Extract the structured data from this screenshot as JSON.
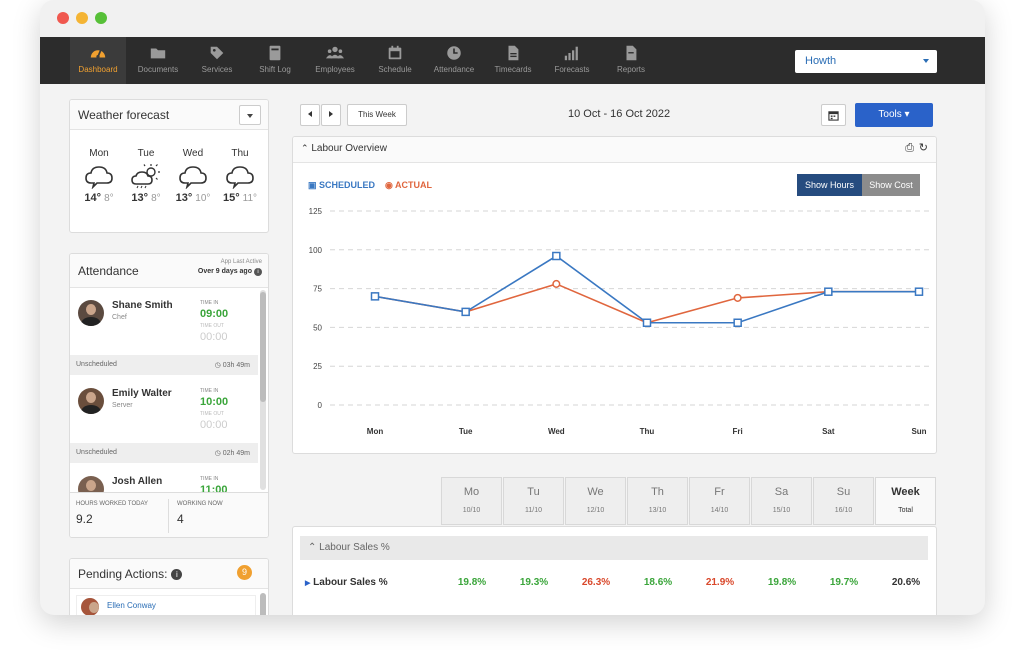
{
  "nav": {
    "items": [
      {
        "label": "Dashboard",
        "icon": "gauge-icon"
      },
      {
        "label": "Documents",
        "icon": "folder-icon"
      },
      {
        "label": "Services",
        "icon": "tag-icon"
      },
      {
        "label": "Shift Log",
        "icon": "book-icon"
      },
      {
        "label": "Employees",
        "icon": "people-icon"
      },
      {
        "label": "Schedule",
        "icon": "calendar-icon"
      },
      {
        "label": "Attendance",
        "icon": "clock-icon"
      },
      {
        "label": "Timecards",
        "icon": "card-icon"
      },
      {
        "label": "Forecasts",
        "icon": "bars-icon"
      },
      {
        "label": "Reports",
        "icon": "report-icon"
      }
    ],
    "location": "Howth"
  },
  "weather": {
    "title": "Weather forecast",
    "days": [
      {
        "day": "Mon",
        "high": "14°",
        "low": "8°",
        "icon": "cloud-icon"
      },
      {
        "day": "Tue",
        "high": "13°",
        "low": "8°",
        "icon": "sun-cloud-icon"
      },
      {
        "day": "Wed",
        "high": "13°",
        "low": "10°",
        "icon": "cloud-icon"
      },
      {
        "day": "Thu",
        "high": "15°",
        "low": "11°",
        "icon": "cloud-icon"
      }
    ]
  },
  "attendance": {
    "title": "Attendance",
    "last_active_label": "App Last Active",
    "last_active_value": "Over 9 days ago",
    "time_in_label": "TIME IN",
    "time_out_label": "TIME OUT",
    "empty_time": "00:00",
    "people": [
      {
        "name": "Shane Smith",
        "role": "Chef",
        "time_in": "09:00",
        "status": "Unscheduled",
        "duration": "03h 49m"
      },
      {
        "name": "Emily Walter",
        "role": "Server",
        "time_in": "10:00",
        "status": "Unscheduled",
        "duration": "02h 49m"
      },
      {
        "name": "Josh Allen",
        "role": "",
        "time_in": "11:00",
        "status": "",
        "duration": ""
      }
    ],
    "hours_worked_label": "HOURS WORKED TODAY",
    "hours_worked_value": "9.2",
    "working_now_label": "WORKING NOW",
    "working_now_value": "4"
  },
  "pending": {
    "title": "Pending Actions:",
    "count": "9",
    "first_item": "Ellen Conway"
  },
  "toolbar": {
    "this_week": "This Week",
    "date_range": "10 Oct - 16 Oct 2022",
    "tools": "Tools"
  },
  "labour": {
    "title": "Labour Overview",
    "legend_scheduled": "SCHEDULED",
    "legend_actual": "ACTUAL",
    "show_hours": "Show Hours",
    "show_cost": "Show Cost"
  },
  "colors": {
    "scheduled": "#3a78c2",
    "actual": "#e0663e",
    "accent": "#f0a030",
    "primary": "#2a62c9"
  },
  "chart_data": {
    "type": "line",
    "categories": [
      "Mon",
      "Tue",
      "Wed",
      "Thu",
      "Fri",
      "Sat",
      "Sun"
    ],
    "series": [
      {
        "name": "SCHEDULED",
        "values": [
          70,
          60,
          96,
          53,
          53,
          73,
          73
        ]
      },
      {
        "name": "ACTUAL",
        "values": [
          70,
          60,
          78,
          53,
          69,
          73,
          73
        ]
      }
    ],
    "yticks": [
      "125",
      "100",
      "75",
      "50",
      "25",
      "0"
    ],
    "ylim": [
      0,
      125
    ],
    "grid": true,
    "legend": "top-left"
  },
  "week_table": {
    "days": [
      {
        "name": "Mo",
        "date": "10/10"
      },
      {
        "name": "Tu",
        "date": "11/10"
      },
      {
        "name": "We",
        "date": "12/10"
      },
      {
        "name": "Th",
        "date": "13/10"
      },
      {
        "name": "Fr",
        "date": "14/10"
      },
      {
        "name": "Sa",
        "date": "15/10"
      },
      {
        "name": "Su",
        "date": "16/10"
      },
      {
        "name": "Week",
        "date": "Total"
      }
    ],
    "section_title": "Labour Sales %",
    "row_label": "Labour Sales %",
    "row_values": [
      "19.8%",
      "19.3%",
      "26.3%",
      "18.6%",
      "21.9%",
      "19.8%",
      "19.7%",
      "20.6%"
    ],
    "row_colors": [
      "#3aa53a",
      "#3aa53a",
      "#d9482b",
      "#3aa53a",
      "#d9482b",
      "#3aa53a",
      "#3aa53a",
      "#333333"
    ]
  }
}
